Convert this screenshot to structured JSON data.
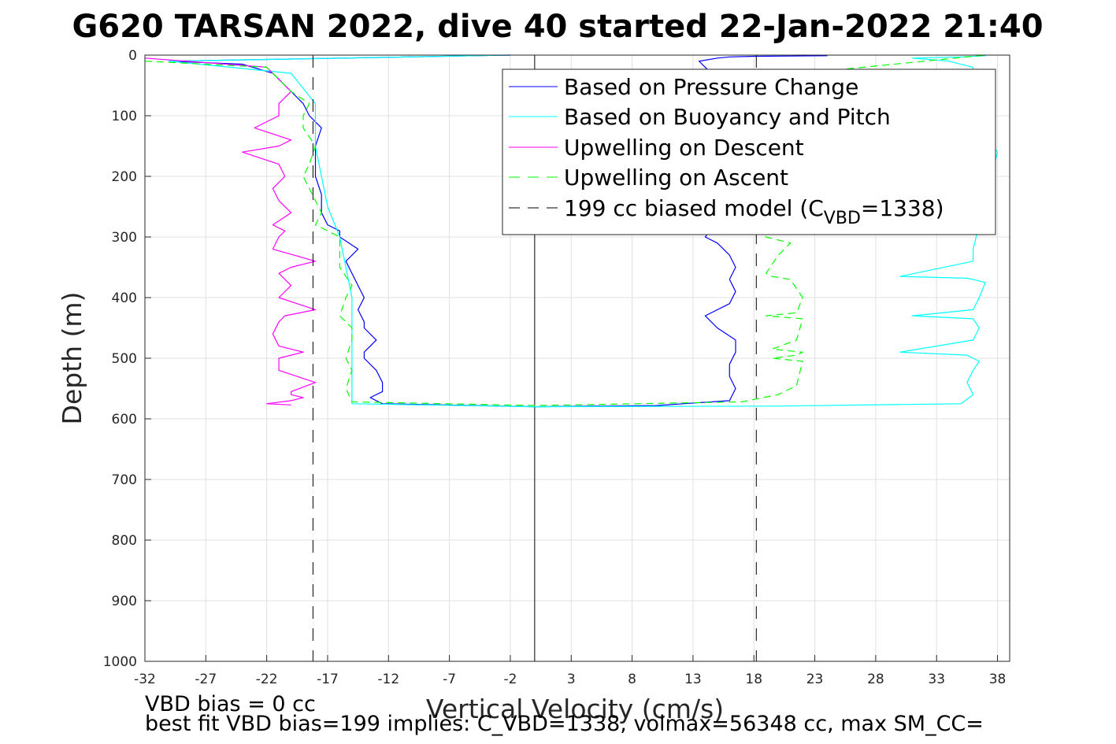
{
  "chart_data": {
    "type": "line",
    "title": "G620 TARSAN 2022, dive 40 started 22-Jan-2022 21:40",
    "xlabel": "Vertical Velocity (cm/s)",
    "ylabel": "Depth (m)",
    "xlim": [
      -32,
      39
    ],
    "ylim": [
      0,
      1000
    ],
    "y_reversed": true,
    "grid": true,
    "legend_placement": "top-right",
    "x_ticks": [
      "-32",
      "-27",
      "-22",
      "-17",
      "-12",
      "-7",
      "-2",
      "3",
      "8",
      "13",
      "18",
      "23",
      "28",
      "33",
      "38"
    ],
    "y_ticks": [
      "0",
      "100",
      "200",
      "300",
      "400",
      "500",
      "600",
      "700",
      "800",
      "900",
      "1000"
    ],
    "legend": {
      "pressure": "Based on Pressure Change",
      "buoyancy": "Based on Buoyancy and Pitch",
      "up_descent": "Upwelling on Descent",
      "up_ascent": "Upwelling on Ascent",
      "model_prefix": "199 cc biased model (C",
      "model_sub": "VBD",
      "model_suffix": "=1338)"
    },
    "series": [
      {
        "key": "pressure",
        "color": "#0000ff",
        "style": "solid",
        "x": [
          -2,
          -30,
          -24,
          -21.5,
          -20,
          -19,
          -18.5,
          -17.5,
          -18,
          -18,
          -17.5,
          -17.5,
          -17,
          -16,
          -16,
          -14.5,
          -15.5,
          -15,
          -14.5,
          -14,
          -14.5,
          -14,
          -14,
          -13,
          -14,
          -14,
          -13,
          -12.5,
          -12.5,
          -13.5,
          -13,
          -12.5,
          0,
          10,
          16,
          16.5,
          16,
          16,
          16.5,
          16.5,
          15,
          14,
          16,
          16.5,
          16,
          16.5,
          16,
          15,
          14,
          16,
          16.5,
          16.5,
          16,
          16,
          15,
          14,
          13.5,
          15,
          16,
          18,
          24,
          22
        ],
        "y": [
          0,
          10,
          15,
          30,
          60,
          80,
          100,
          120,
          150,
          200,
          230,
          260,
          280,
          290,
          300,
          320,
          340,
          360,
          380,
          400,
          420,
          440,
          450,
          470,
          490,
          500,
          520,
          540,
          555,
          565,
          570,
          575,
          580,
          578,
          570,
          550,
          530,
          510,
          490,
          470,
          450,
          430,
          410,
          390,
          370,
          350,
          330,
          310,
          300,
          250,
          200,
          150,
          100,
          60,
          40,
          20,
          10,
          5,
          3,
          2,
          1,
          0
        ]
      },
      {
        "key": "buoyancy",
        "color": "#00ffff",
        "style": "solid",
        "x": [
          -2,
          -30,
          -20,
          -18,
          -18,
          -17.5,
          -17,
          -16,
          -15.5,
          -15,
          -15,
          -15,
          -15,
          -15,
          -15,
          -15,
          0,
          20,
          35,
          36,
          35.5,
          36,
          36.5,
          36,
          35.5,
          30,
          36,
          36.5,
          36,
          31,
          36,
          36.5,
          37,
          36,
          35.5,
          30,
          36,
          36,
          38,
          36,
          36,
          36,
          34,
          31,
          35,
          37,
          37
        ],
        "y": [
          0,
          10,
          30,
          80,
          150,
          200,
          250,
          300,
          350,
          400,
          450,
          500,
          540,
          560,
          570,
          575,
          580,
          579,
          575,
          560,
          540,
          520,
          505,
          500,
          495,
          490,
          470,
          450,
          435,
          430,
          420,
          400,
          375,
          370,
          368,
          365,
          340,
          320,
          160,
          100,
          50,
          20,
          10,
          5,
          3,
          1,
          0
        ]
      },
      {
        "key": "up_descent",
        "color": "#ff00ff",
        "style": "solid",
        "x": [
          -32,
          -22,
          -21,
          -20,
          -21,
          -21,
          -23,
          -20,
          -21,
          -24,
          -21,
          -20.5,
          -21.5,
          -21,
          -20,
          -21.5,
          -20.5,
          -21,
          -21.5,
          -18,
          -20,
          -21,
          -20,
          -21,
          -18,
          -20.5,
          -21,
          -21.5,
          -21,
          -19,
          -21,
          -21,
          -18,
          -20,
          -20,
          -19,
          -20,
          -22,
          -20
        ],
        "y": [
          5,
          20,
          40,
          60,
          80,
          100,
          120,
          140,
          150,
          160,
          180,
          200,
          220,
          240,
          260,
          280,
          290,
          300,
          320,
          340,
          350,
          360,
          380,
          400,
          420,
          430,
          440,
          460,
          480,
          490,
          500,
          520,
          540,
          555,
          560,
          565,
          570,
          575,
          577
        ]
      },
      {
        "key": "up_ascent",
        "color": "#00ff00",
        "style": "dashed",
        "x": [
          -32,
          -22,
          -21,
          -20,
          -18.5,
          -19,
          -19,
          -18,
          -18.5,
          -19,
          -18,
          -17.5,
          -18,
          -17,
          -16,
          -16,
          -16,
          -15,
          -15.5,
          -16,
          -15,
          -15,
          -15.5,
          -15,
          -15.5,
          -15,
          0,
          17,
          20,
          21.5,
          22,
          19.5,
          21.5,
          22,
          19.5,
          21.5,
          22,
          19,
          21.5,
          22,
          21,
          19.5,
          19,
          20,
          21,
          19,
          18,
          17,
          37
        ],
        "y": [
          10,
          20,
          40,
          60,
          80,
          100,
          120,
          150,
          180,
          200,
          240,
          260,
          280,
          290,
          300,
          320,
          350,
          380,
          400,
          430,
          450,
          470,
          500,
          520,
          550,
          572,
          578,
          572,
          560,
          545,
          505,
          500,
          495,
          490,
          485,
          470,
          435,
          430,
          425,
          400,
          370,
          365,
          360,
          330,
          310,
          300,
          120,
          40,
          0
        ]
      },
      {
        "key": "model",
        "color": "#000000",
        "style": "dashed",
        "segments": [
          {
            "x": [
              -18.2,
              -18.2
            ],
            "y": [
              0,
              1000
            ]
          },
          {
            "x": [
              18.2,
              18.2
            ],
            "y": [
              0,
              1000
            ]
          }
        ]
      }
    ],
    "reference_line": {
      "x": 0,
      "color": "#000000",
      "style": "solid"
    },
    "annotations": [
      "VBD bias = 0 cc",
      "best fit VBD bias=199 implies: C_VBD=1338, volmax=56348 cc, max SM_CC="
    ]
  }
}
